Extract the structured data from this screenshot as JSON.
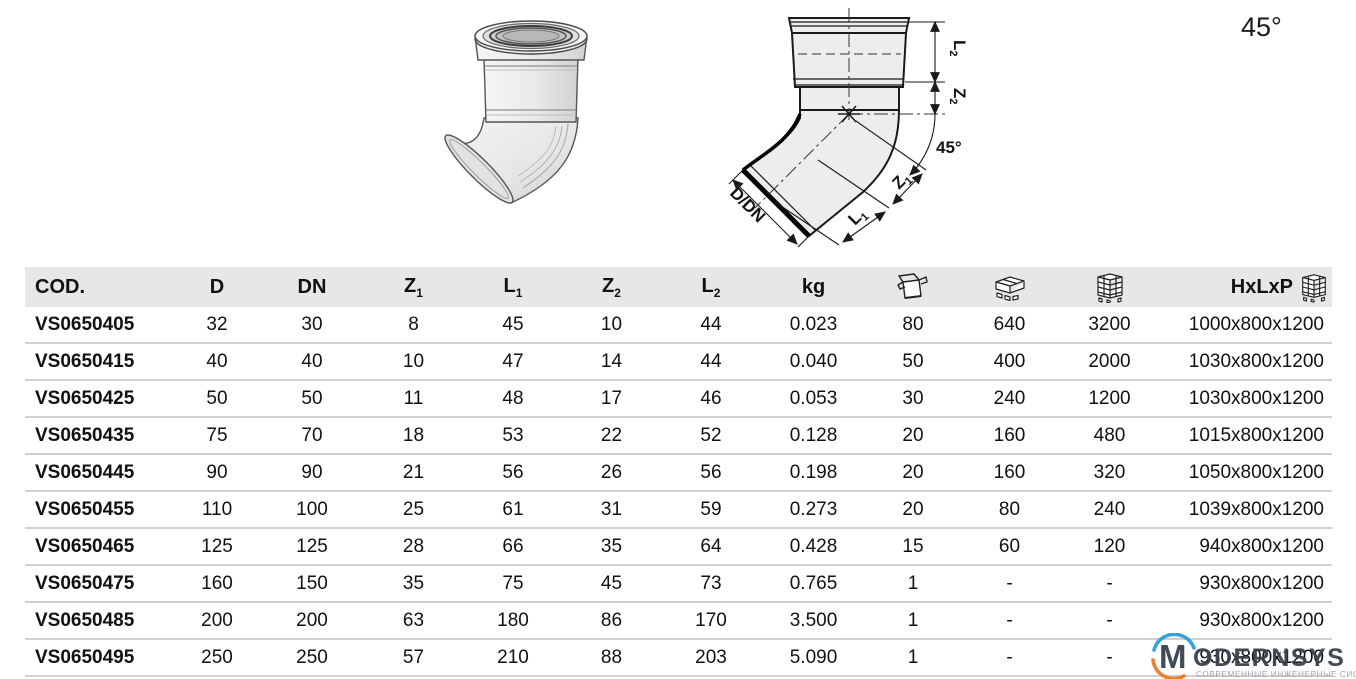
{
  "page": {
    "angle_label": "45°"
  },
  "diagram": {
    "labels": {
      "l2": {
        "base": "L",
        "sub": "2"
      },
      "z2": {
        "base": "Z",
        "sub": "2"
      },
      "angle": "45°",
      "z1": {
        "base": "Z",
        "sub": "1"
      },
      "l1": {
        "base": "L",
        "sub": "1"
      },
      "ddn": "D/DN"
    }
  },
  "table": {
    "columns": [
      {
        "label": "COD.",
        "sub": ""
      },
      {
        "label": "D",
        "sub": ""
      },
      {
        "label": "DN",
        "sub": ""
      },
      {
        "label": "Z",
        "sub": "1"
      },
      {
        "label": "L",
        "sub": "1"
      },
      {
        "label": "Z",
        "sub": "2"
      },
      {
        "label": "L",
        "sub": "2"
      },
      {
        "label": "kg",
        "sub": ""
      },
      {
        "icon": "open-box-icon"
      },
      {
        "icon": "carton-layer-icon"
      },
      {
        "icon": "pallet-stack-icon"
      },
      {
        "label": "HxLxP",
        "sub": "",
        "icon": "pallet-stack-icon"
      }
    ],
    "rows": [
      [
        "VS0650405",
        "32",
        "30",
        "8",
        "45",
        "10",
        "44",
        "0.023",
        "80",
        "640",
        "3200",
        "1000x800x1200"
      ],
      [
        "VS0650415",
        "40",
        "40",
        "10",
        "47",
        "14",
        "44",
        "0.040",
        "50",
        "400",
        "2000",
        "1030x800x1200"
      ],
      [
        "VS0650425",
        "50",
        "50",
        "11",
        "48",
        "17",
        "46",
        "0.053",
        "30",
        "240",
        "1200",
        "1030x800x1200"
      ],
      [
        "VS0650435",
        "75",
        "70",
        "18",
        "53",
        "22",
        "52",
        "0.128",
        "20",
        "160",
        "480",
        "1015x800x1200"
      ],
      [
        "VS0650445",
        "90",
        "90",
        "21",
        "56",
        "26",
        "56",
        "0.198",
        "20",
        "160",
        "320",
        "1050x800x1200"
      ],
      [
        "VS0650455",
        "110",
        "100",
        "25",
        "61",
        "31",
        "59",
        "0.273",
        "20",
        "80",
        "240",
        "1039x800x1200"
      ],
      [
        "VS0650465",
        "125",
        "125",
        "28",
        "66",
        "35",
        "64",
        "0.428",
        "15",
        "60",
        "120",
        "940x800x1200"
      ],
      [
        "VS0650475",
        "160",
        "150",
        "35",
        "75",
        "45",
        "73",
        "0.765",
        "1",
        "-",
        "-",
        "930x800x1200"
      ],
      [
        "VS0650485",
        "200",
        "200",
        "63",
        "180",
        "86",
        "170",
        "3.500",
        "1",
        "-",
        "-",
        "930x800x1200"
      ],
      [
        "VS0650495",
        "250",
        "250",
        "57",
        "210",
        "88",
        "203",
        "5.090",
        "1",
        "-",
        "-",
        "930x800x1200"
      ]
    ]
  },
  "logo": {
    "m": "M",
    "rest": "ODERNSYS",
    "subtitle": "СОВРЕМЕННЫЕ ИНЖЕНЕРНЫЕ СИСТЕМЫ",
    "blue": "#2b9cd8",
    "orange": "#e87a2e",
    "text_color": "#37424e"
  }
}
